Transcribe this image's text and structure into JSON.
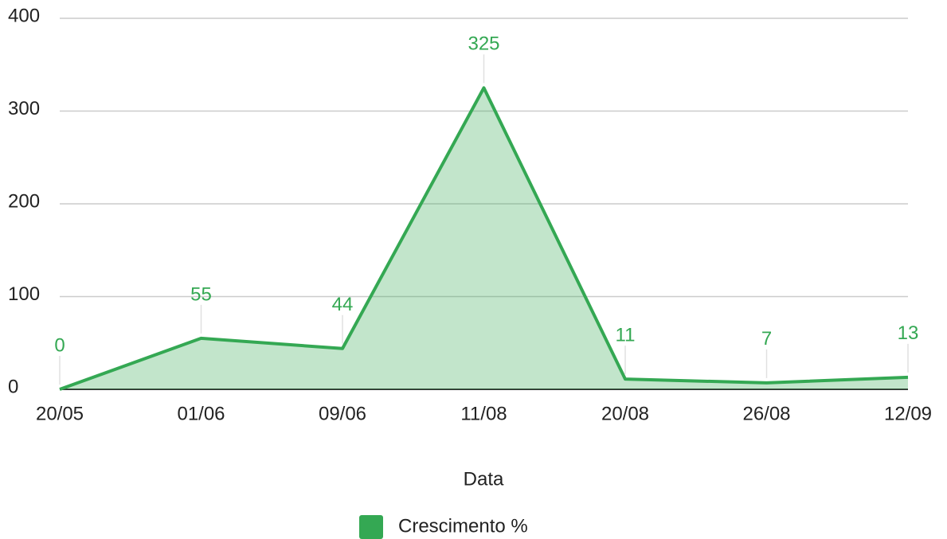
{
  "chart_data": {
    "type": "area",
    "categories": [
      "20/05",
      "01/06",
      "09/06",
      "11/08",
      "20/08",
      "26/08",
      "12/09"
    ],
    "series": [
      {
        "name": "Crescimento %",
        "color": "#34a853",
        "values": [
          0,
          55,
          44,
          325,
          11,
          7,
          13
        ]
      }
    ],
    "xlabel": "Data",
    "ylim": [
      0,
      400
    ],
    "yticks": [
      0,
      100,
      200,
      300,
      400
    ],
    "grid": true,
    "data_labels": true,
    "legend": "bottom"
  }
}
